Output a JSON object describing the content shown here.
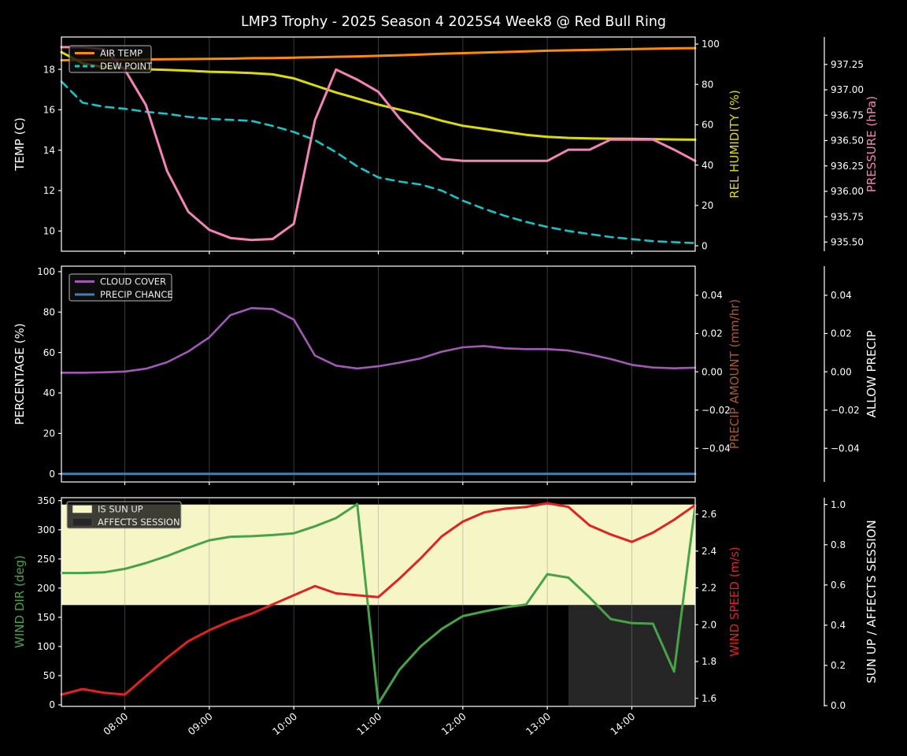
{
  "title": "LMP3 Trophy - 2025 Season 4 2025S4 Week8 @ Red Bull Ring",
  "colors": {
    "background": "#000000",
    "foreground": "#ffffff",
    "grid": "#888888",
    "air_temp": "#ff8c00",
    "dew_point": "#16c5c5",
    "humidity": "#dcdc00",
    "pressure": "#f285b5",
    "cloud_cover": "#a15ab4",
    "precip_chance": "#4080b8",
    "precip_amount": "#a85a2e",
    "wind_dir": "#48a348",
    "wind_speed": "#e02222",
    "sun_up_fill": "#f5f5c6",
    "affects_fill": "#262626",
    "legend_bg": "rgba(15,15,15,0.8)",
    "legend_border": "#b8b8b8"
  },
  "chart_data": {
    "type": "line",
    "title": "LMP3 Trophy - 2025 Season 4 2025S4 Week8 @ Red Bull Ring",
    "x_axis": {
      "range_hours": [
        7.25,
        14.75
      ],
      "tick_hours": [
        8,
        9,
        10,
        11,
        12,
        13,
        14
      ],
      "tick_labels": [
        "08:00",
        "09:00",
        "10:00",
        "11:00",
        "12:00",
        "13:00",
        "14:00"
      ]
    },
    "sample_hours": [
      7.25,
      7.5,
      7.75,
      8,
      8.25,
      8.5,
      8.75,
      9,
      9.25,
      9.5,
      9.75,
      10,
      10.25,
      10.5,
      10.75,
      11,
      11.25,
      11.5,
      11.75,
      12,
      12.25,
      12.5,
      12.75,
      13,
      13.25,
      13.5,
      13.75,
      14,
      14.25,
      14.5,
      14.75
    ],
    "panels": [
      {
        "name": "temp-humidity-pressure-panel",
        "legend": [
          {
            "label": "AIR TEMP",
            "swatch": "line",
            "color_key": "air_temp",
            "dash": false
          },
          {
            "label": "DEW POINT",
            "swatch": "line",
            "color_key": "dew_point",
            "dash": true
          }
        ],
        "axes": [
          {
            "id": "temp",
            "label": "TEMP (C)",
            "side": "left",
            "label_color": "#ffffff",
            "range": [
              9.0,
              19.6
            ],
            "tick_values": [
              10,
              12,
              14,
              16,
              18
            ],
            "ticks": [
              "10",
              "12",
              "14",
              "16",
              "18"
            ]
          },
          {
            "id": "humidity",
            "label": "REL HUMIDITY (%)",
            "side": "right",
            "offset": 0,
            "label_color": "#dcdc00",
            "range": [
              -2.7,
              103.5
            ],
            "tick_values": [
              0,
              20,
              40,
              60,
              80,
              100
            ],
            "ticks": [
              "0",
              "20",
              "40",
              "60",
              "80",
              "100"
            ]
          },
          {
            "id": "pressure",
            "label": "PRESSURE (hPa)",
            "side": "right",
            "offset": 164,
            "label_color": "#f285b5",
            "range": [
              935.41,
              937.52
            ],
            "tick_values": [
              935.5,
              935.75,
              936,
              936.25,
              936.5,
              936.75,
              937,
              937.25
            ],
            "ticks": [
              "935.50",
              "935.75",
              "936.00",
              "936.25",
              "936.50",
              "936.75",
              "937.00",
              "937.25"
            ]
          }
        ],
        "series": [
          {
            "name": "AIR TEMP",
            "axis": "temp",
            "color_key": "air_temp",
            "width": 3,
            "dash": null,
            "values": [
              18.45,
              18.46,
              18.47,
              18.48,
              18.49,
              18.5,
              18.51,
              18.52,
              18.53,
              18.55,
              18.56,
              18.58,
              18.6,
              18.62,
              18.64,
              18.67,
              18.7,
              18.73,
              18.77,
              18.8,
              18.83,
              18.86,
              18.89,
              18.92,
              18.94,
              18.96,
              18.98,
              19,
              19.02,
              19.04,
              19.05
            ]
          },
          {
            "name": "DEW POINT",
            "axis": "temp",
            "color_key": "dew_point",
            "width": 2.6,
            "dash": "10 7",
            "values": [
              17.4,
              16.35,
              16.15,
              16.05,
              15.9,
              15.8,
              15.65,
              15.55,
              15.5,
              15.45,
              15.2,
              14.9,
              14.5,
              13.9,
              13.2,
              12.65,
              12.45,
              12.3,
              12,
              11.5,
              11.1,
              10.75,
              10.45,
              10.2,
              10,
              9.85,
              9.7,
              9.6,
              9.5,
              9.45,
              9.4
            ]
          },
          {
            "name": "REL HUMIDITY",
            "axis": "humidity",
            "color_key": "humidity",
            "width": 3,
            "dash": null,
            "values": [
              96,
              90.5,
              88.5,
              88,
              87.5,
              87.2,
              86.8,
              86.3,
              86,
              85.6,
              85,
              83,
              79.5,
              76,
              73,
              70,
              67.5,
              65,
              62,
              59.5,
              58,
              56.5,
              55,
              54,
              53.5,
              53.2,
              53.1,
              53,
              52.9,
              52.7,
              52.6
            ]
          },
          {
            "name": "PRESSURE",
            "axis": "pressure",
            "color_key": "pressure",
            "width": 3,
            "dash": null,
            "values": [
              937.42,
              937.42,
              937.4,
              937.2,
              936.85,
              936.2,
              935.8,
              935.62,
              935.54,
              935.52,
              935.53,
              935.68,
              936.7,
              937.2,
              937.1,
              936.98,
              936.72,
              936.5,
              936.32,
              936.3,
              936.3,
              936.3,
              936.3,
              936.3,
              936.41,
              936.41,
              936.51,
              936.51,
              936.51,
              936.41,
              936.3
            ]
          }
        ]
      },
      {
        "name": "cloud-precip-panel",
        "legend": [
          {
            "label": "CLOUD COVER",
            "swatch": "line",
            "color_key": "cloud_cover",
            "dash": false
          },
          {
            "label": "PRECIP CHANCE",
            "swatch": "line",
            "color_key": "precip_chance",
            "dash": false
          }
        ],
        "axes": [
          {
            "id": "percentage",
            "label": "PERCENTAGE (%)",
            "side": "left",
            "label_color": "#ffffff",
            "range": [
              -4.0,
              102.7
            ],
            "tick_values": [
              0,
              20,
              40,
              60,
              80,
              100
            ],
            "ticks": [
              "0",
              "20",
              "40",
              "60",
              "80",
              "100"
            ]
          },
          {
            "id": "precip_amount",
            "label": "PRECIP AMOUNT (mm/hr)",
            "side": "right",
            "offset": 0,
            "label_color": "#a85a2e",
            "range": [
              -0.0576,
              0.0552
            ],
            "tick_values": [
              -0.04,
              -0.02,
              0,
              0.02,
              0.04
            ],
            "ticks": [
              "−0.04",
              "−0.02",
              "0.00",
              "0.02",
              "0.04"
            ]
          },
          {
            "id": "allow_precip",
            "label": "ALLOW PRECIP",
            "side": "right",
            "offset": 164,
            "label_color": "#ffffff",
            "range": [
              -0.0576,
              0.0552
            ],
            "tick_values": [
              -0.04,
              -0.02,
              0,
              0.02,
              0.04
            ],
            "ticks": [
              "−0.04",
              "−0.02",
              "0.00",
              "0.02",
              "0.04"
            ]
          }
        ],
        "series": [
          {
            "name": "CLOUD COVER",
            "axis": "percentage",
            "color_key": "cloud_cover",
            "width": 2.6,
            "dash": null,
            "values": [
              50,
              50,
              50.2,
              50.6,
              52,
              55.2,
              60.5,
              67.5,
              78.5,
              82,
              81.5,
              76.3,
              58.5,
              53.5,
              52.1,
              53.2,
              55,
              57.1,
              60.4,
              62.6,
              63.2,
              62.1,
              61.7,
              61.7,
              61,
              59.1,
              56.8,
              53.9,
              52.6,
              52.2,
              52.5
            ]
          },
          {
            "name": "PRECIP CHANCE",
            "axis": "percentage",
            "color_key": "precip_chance",
            "width": 3,
            "dash": null,
            "values": [
              0,
              0,
              0,
              0,
              0,
              0,
              0,
              0,
              0,
              0,
              0,
              0,
              0,
              0,
              0,
              0,
              0,
              0,
              0,
              0,
              0,
              0,
              0,
              0,
              0,
              0,
              0,
              0,
              0,
              0,
              0
            ]
          }
        ]
      },
      {
        "name": "wind-sun-panel",
        "legend": [
          {
            "label": "IS SUN UP",
            "swatch": "patch",
            "color_key": "sun_up_fill",
            "dash": false
          },
          {
            "label": "AFFECTS SESSION",
            "swatch": "patch",
            "color_key": "affects_fill",
            "dash": false
          }
        ],
        "bands": [
          {
            "name": "sun-up-band",
            "axis": "sun",
            "x_from": 7.25,
            "x_to": 14.75,
            "from": 0.5,
            "to": 1.0,
            "color_key": "sun_up_fill"
          },
          {
            "name": "affects-session-band",
            "axis": "sun",
            "x_from": 13.25,
            "x_to": 14.75,
            "from": 0.0,
            "to": 0.5,
            "color_key": "affects_fill"
          }
        ],
        "axes": [
          {
            "id": "wind_dir",
            "label": "WIND DIR (deg)",
            "side": "left",
            "label_color": "#48a348",
            "range": [
              -2.7,
              355
            ],
            "tick_values": [
              0,
              50,
              100,
              150,
              200,
              250,
              300,
              350
            ],
            "ticks": [
              "0",
              "50",
              "100",
              "150",
              "200",
              "250",
              "300",
              "350"
            ]
          },
          {
            "id": "wind_speed",
            "label": "WIND SPEED (m/s)",
            "side": "right",
            "offset": 0,
            "label_color": "#e02222",
            "range": [
              1.556,
              2.69
            ],
            "tick_values": [
              1.6,
              1.8,
              2.0,
              2.2,
              2.4,
              2.6
            ],
            "ticks": [
              "1.6",
              "1.8",
              "2.0",
              "2.2",
              "2.4",
              "2.6"
            ]
          },
          {
            "id": "sun",
            "label": "SUN UP / AFFECTS SESSION",
            "side": "right",
            "offset": 164,
            "label_color": "#ffffff",
            "range": [
              -0.004,
              1.034
            ],
            "tick_values": [
              0,
              0.2,
              0.4,
              0.6,
              0.8,
              1.0
            ],
            "ticks": [
              "0.0",
              "0.2",
              "0.4",
              "0.6",
              "0.8",
              "1.0"
            ]
          }
        ],
        "series": [
          {
            "name": "WIND DIR",
            "axis": "wind_dir",
            "color_key": "wind_dir",
            "width": 3,
            "dash": null,
            "values": [
              226,
              226,
              227,
              233,
              243,
              255,
              269,
              282,
              288,
              289,
              291,
              294,
              306,
              320,
              344,
              2,
              60,
              100,
              130,
              152,
              160,
              167,
              172,
              224,
              218,
              184,
              147,
              140,
              139,
              57,
              342
            ]
          },
          {
            "name": "WIND SPEED",
            "axis": "wind_speed",
            "color_key": "wind_speed",
            "width": 3,
            "dash": null,
            "values": [
              1.62,
              1.65,
              1.63,
              1.62,
              1.72,
              1.82,
              1.91,
              1.97,
              2.02,
              2.06,
              2.11,
              2.16,
              2.21,
              2.17,
              2.16,
              2.15,
              2.25,
              2.36,
              2.48,
              2.56,
              2.61,
              2.63,
              2.64,
              2.66,
              2.64,
              2.54,
              2.49,
              2.45,
              2.5,
              2.57,
              2.65
            ]
          }
        ]
      }
    ]
  }
}
